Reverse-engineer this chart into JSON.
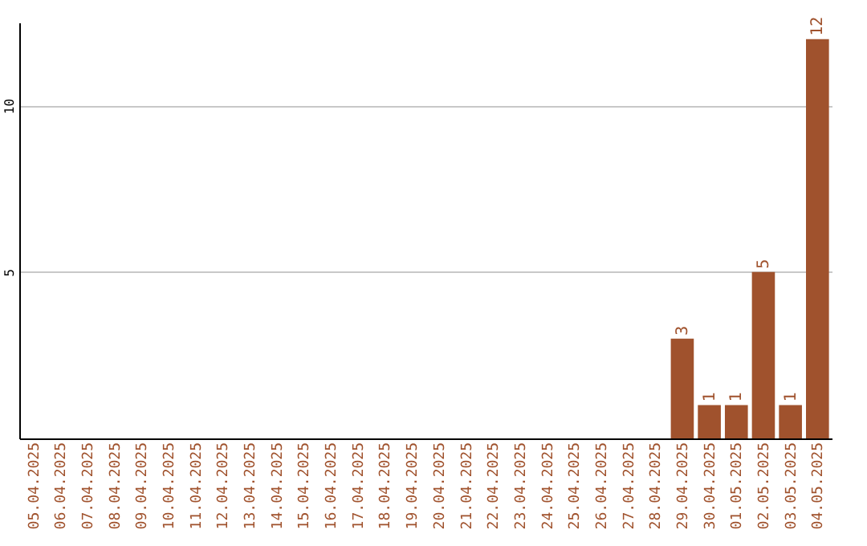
{
  "chart_data": {
    "type": "bar",
    "categories": [
      "05.04.2025",
      "06.04.2025",
      "07.04.2025",
      "08.04.2025",
      "09.04.2025",
      "10.04.2025",
      "11.04.2025",
      "12.04.2025",
      "13.04.2025",
      "14.04.2025",
      "15.04.2025",
      "16.04.2025",
      "17.04.2025",
      "18.04.2025",
      "19.04.2025",
      "20.04.2025",
      "21.04.2025",
      "22.04.2025",
      "23.04.2025",
      "24.04.2025",
      "25.04.2025",
      "26.04.2025",
      "27.04.2025",
      "28.04.2025",
      "29.04.2025",
      "30.04.2025",
      "01.05.2025",
      "02.05.2025",
      "03.05.2025",
      "04.05.2025"
    ],
    "values": [
      0,
      0,
      0,
      0,
      0,
      0,
      0,
      0,
      0,
      0,
      0,
      0,
      0,
      0,
      0,
      0,
      0,
      0,
      0,
      0,
      0,
      0,
      0,
      0,
      3,
      1,
      1,
      5,
      1,
      12
    ],
    "value_labels": [
      null,
      null,
      null,
      null,
      null,
      null,
      null,
      null,
      null,
      null,
      null,
      null,
      null,
      null,
      null,
      null,
      null,
      null,
      null,
      null,
      null,
      null,
      null,
      null,
      "3",
      "1",
      "1",
      "5",
      "1",
      "12"
    ],
    "color": "#a0522d",
    "ylim": [
      0,
      12.5
    ],
    "yticks": [
      5,
      10
    ],
    "grid": "y"
  }
}
